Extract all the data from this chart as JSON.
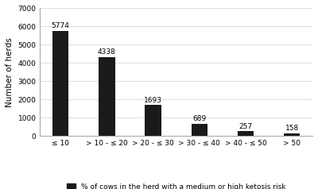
{
  "categories": [
    "≤ 10",
    "> 10 - ≤ 20",
    "> 20 - ≤ 30",
    "> 30 - ≤ 40",
    "> 40 - ≤ 50",
    "> 50"
  ],
  "values": [
    5774,
    4338,
    1693,
    689,
    257,
    158
  ],
  "bar_color": "#1a1a1a",
  "ylabel": "Number of herds",
  "ylim": [
    0,
    7000
  ],
  "yticks": [
    0,
    1000,
    2000,
    3000,
    4000,
    5000,
    6000,
    7000
  ],
  "legend_label": "% of cows in the herd with a medium or high ketosis risk",
  "background_color": "#ffffff",
  "grid_color": "#d0d0d0",
  "bar_label_fontsize": 6.5,
  "tick_fontsize": 6.5,
  "ylabel_fontsize": 7.5,
  "legend_fontsize": 6.5,
  "bar_width": 0.35
}
